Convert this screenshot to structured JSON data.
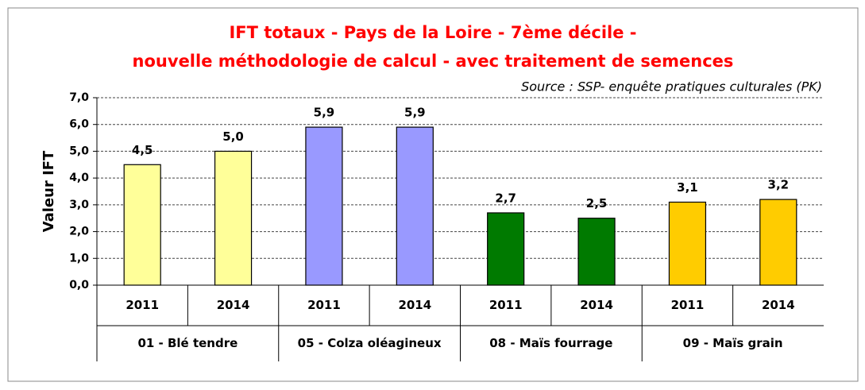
{
  "chart_data": {
    "type": "bar",
    "title": [
      "IFT totaux - Pays de la Loire - 7ème décile -",
      "nouvelle méthodologie de calcul - avec traitement de semences"
    ],
    "source": "Source : SSP- enquête pratiques culturales (PK)",
    "ylabel": "Valeur IFT",
    "ylim": [
      0,
      7
    ],
    "yticks": [
      {
        "value": 0,
        "label": "0,0"
      },
      {
        "value": 1,
        "label": "1,0"
      },
      {
        "value": 2,
        "label": "2,0"
      },
      {
        "value": 3,
        "label": "3,0"
      },
      {
        "value": 4,
        "label": "4,0"
      },
      {
        "value": 5,
        "label": "5,0"
      },
      {
        "value": 6,
        "label": "6,0"
      },
      {
        "value": 7,
        "label": "7,0"
      }
    ],
    "grid": true,
    "groups": [
      {
        "name": "01 - Blé tendre",
        "color": "#ffff99",
        "categories": [
          "2011",
          "2014"
        ],
        "values": [
          4.5,
          5.0
        ],
        "value_labels": [
          "4,5",
          "5,0"
        ]
      },
      {
        "name": "05 - Colza oléagineux",
        "color": "#9999ff",
        "categories": [
          "2011",
          "2014"
        ],
        "values": [
          5.9,
          5.9
        ],
        "value_labels": [
          "5,9",
          "5,9"
        ]
      },
      {
        "name": "08 - Maïs fourrage",
        "color": "#007a00",
        "categories": [
          "2011",
          "2014"
        ],
        "values": [
          2.7,
          2.5
        ],
        "value_labels": [
          "2,7",
          "2,5"
        ]
      },
      {
        "name": "09 - Maïs grain",
        "color": "#ffcc00",
        "categories": [
          "2011",
          "2014"
        ],
        "values": [
          3.1,
          3.2
        ],
        "value_labels": [
          "3,1",
          "3,2"
        ]
      }
    ]
  }
}
